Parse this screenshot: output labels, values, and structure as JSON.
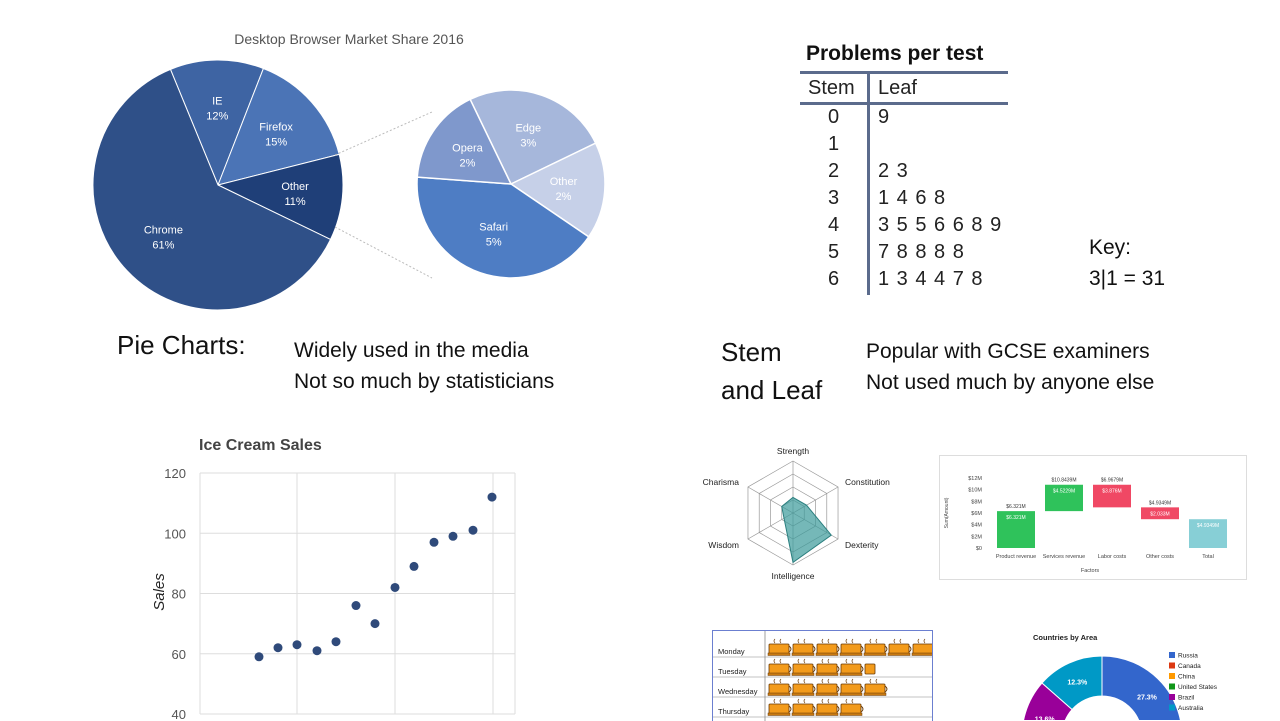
{
  "pie_section": {
    "heading": "Pie Charts:",
    "notes": [
      "Widely used in the media",
      "Not so much by statisticians"
    ]
  },
  "stem_section": {
    "heading_line1": "Stem",
    "heading_line2": "and Leaf",
    "notes": [
      "Popular with GCSE examiners",
      "Not used much by anyone else"
    ]
  },
  "stem_leaf": {
    "title": "Problems per test",
    "stem_header": "Stem",
    "leaf_header": "Leaf",
    "rows": [
      {
        "stem": "0",
        "leaf": "9"
      },
      {
        "stem": "1",
        "leaf": ""
      },
      {
        "stem": "2",
        "leaf": "2 3"
      },
      {
        "stem": "3",
        "leaf": "1 4 6 8"
      },
      {
        "stem": "4",
        "leaf": "3 5 5 6 6 8 9"
      },
      {
        "stem": "5",
        "leaf": "7 8 8 8 8"
      },
      {
        "stem": "6",
        "leaf": "1 3 4 4 7 8"
      }
    ],
    "key_label": "Key:",
    "key_value": "3|1 = 31"
  },
  "chart_data": [
    {
      "type": "pie",
      "title": "Desktop Browser Market Share 2016",
      "labels": [
        "Chrome",
        "IE",
        "Firefox",
        "Other"
      ],
      "label_texts": [
        "Chrome\n61%",
        "IE\n12%",
        "Firefox\n15%",
        "Other\n11%"
      ],
      "values": [
        61,
        12,
        15,
        11
      ],
      "colors": [
        "#2f5088",
        "#3e64a3",
        "#4b74b6",
        "#1f3f78"
      ],
      "breakdown": {
        "labels": [
          "Edge",
          "Other",
          "Safari",
          "Opera"
        ],
        "label_texts": [
          "Edge\n3%",
          "Other\n2%",
          "Safari\n5%",
          "Opera\n2%"
        ],
        "values": [
          3,
          2,
          5,
          2
        ],
        "colors": [
          "#a6b7db",
          "#c6d0e8",
          "#4e7dc4",
          "#7f98cc"
        ]
      }
    },
    {
      "type": "scatter",
      "title": "Ice Cream Sales",
      "xlabel": "",
      "ylabel": "Sales",
      "yticks": [
        40,
        60,
        80,
        100,
        120
      ],
      "ylim": [
        40,
        120
      ],
      "points": [
        {
          "x": 1,
          "y": 59
        },
        {
          "x": 2,
          "y": 62
        },
        {
          "x": 3,
          "y": 63
        },
        {
          "x": 4,
          "y": 61
        },
        {
          "x": 5,
          "y": 64
        },
        {
          "x": 6,
          "y": 76
        },
        {
          "x": 7,
          "y": 70
        },
        {
          "x": 8,
          "y": 82
        },
        {
          "x": 9,
          "y": 89
        },
        {
          "x": 10,
          "y": 97
        },
        {
          "x": 11,
          "y": 99
        },
        {
          "x": 12,
          "y": 101
        },
        {
          "x": 13,
          "y": 112
        }
      ],
      "color": "#2f4a7a"
    },
    {
      "type": "radar",
      "axes": [
        "Strength",
        "Constitution",
        "Dexterity",
        "Intelligence",
        "Wisdom",
        "Charisma"
      ],
      "values": [
        0.3,
        0.3,
        0.85,
        0.95,
        0.2,
        0.25
      ],
      "color": "#3a9a9a"
    },
    {
      "type": "bar",
      "subtype": "waterfall",
      "categories": [
        "Product revenue",
        "Services revenue",
        "Labor costs",
        "Other costs",
        "Total"
      ],
      "yticks": [
        "$12M",
        "$10M",
        "$8M",
        "$6M",
        "$4M",
        "$2M",
        "$0"
      ],
      "ylabel": "Sum(Amount)",
      "xlabel": "Factors",
      "ylim": [
        0,
        12
      ],
      "bars": [
        {
          "base": 0,
          "top": 6.321,
          "label": "$6.321M",
          "inner_label": "$6.321M",
          "color": "#2fc25b"
        },
        {
          "base": 6.321,
          "top": 10.8439,
          "label": "$10.8439M",
          "inner_label": "$4.5229M",
          "color": "#2fc25b"
        },
        {
          "base": 6.9679,
          "top": 10.8439,
          "label": "$6.9679M",
          "inner_label": "$3.876M",
          "color": "#f04864"
        },
        {
          "base": 4.9349,
          "top": 6.9679,
          "label": "$4.9349M",
          "inner_label": "$2.033M",
          "color": "#f04864"
        },
        {
          "base": 0,
          "top": 4.9349,
          "label": "",
          "inner_label": "$4.9349M",
          "color": "#87cfd6"
        }
      ]
    },
    {
      "type": "pictograph",
      "categories": [
        "Monday",
        "Tuesday",
        "Wednesday",
        "Thursday"
      ],
      "values": [
        7,
        4.5,
        5,
        4
      ],
      "icon": "coffee-cup-icon"
    },
    {
      "type": "pie",
      "subtype": "donut",
      "title": "Countries by Area",
      "legend": [
        "Russia",
        "Canada",
        "China",
        "United States",
        "Brazil",
        "Australia"
      ],
      "legend_colors": [
        "#3366cc",
        "#dc3912",
        "#ff9900",
        "#109618",
        "#990099",
        "#0099c6"
      ],
      "visible_slices": [
        {
          "label": "27.3%",
          "value": 27.3,
          "color": "#3366cc"
        },
        {
          "label": "13.6%",
          "value": 13.6,
          "color": "#990099"
        },
        {
          "label": "12.3%",
          "value": 12.3,
          "color": "#0099c6"
        }
      ],
      "legend_position": "right"
    }
  ]
}
